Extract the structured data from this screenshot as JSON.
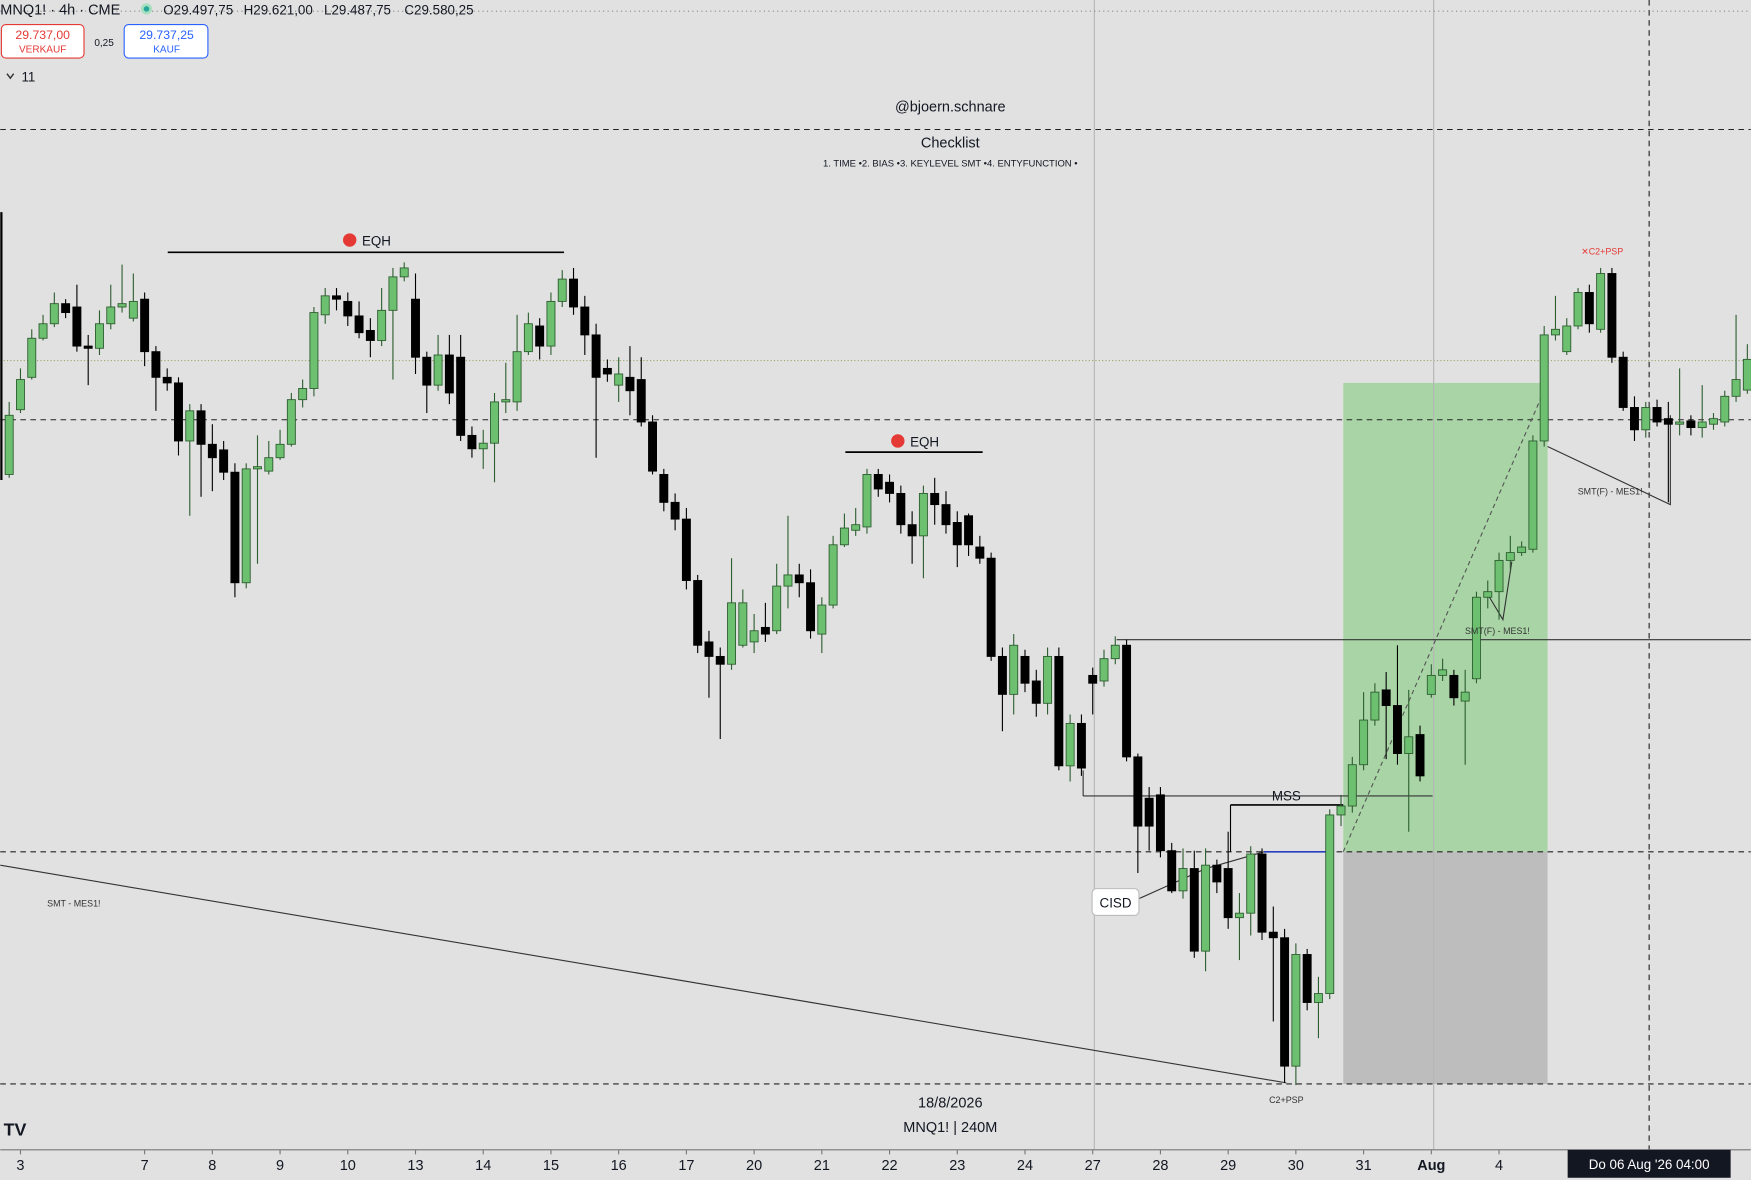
{
  "header": {
    "symbol": "MNQ1! · 4h · CME",
    "open": "O29.497,75",
    "high": "H29.621,00",
    "low": "L29.487,75",
    "close": "C29.580,25"
  },
  "order_panel": {
    "sell_price": "29.737,00",
    "sell_label": "VERKAUF",
    "spread": "0,25",
    "buy_price": "29.737,25",
    "buy_label": "KAUF"
  },
  "indicators_toggle": "11",
  "watermark": {
    "author": "@bjoern.schnare",
    "checklist_title": "Checklist",
    "checklist_items": "1. TIME •2. BIAS •3. KEYLEVEL SMT •4. ENTYFUNCTION •",
    "date": "18/8/2026",
    "symbol_interval": "MNQ1! | 240M"
  },
  "crosshair_label": "Do 06 Aug '26  04:00",
  "chart_data": {
    "type": "candlestick",
    "colors": {
      "up": "#6cc070",
      "down": "#000000"
    },
    "xlim": [
      -0.79,
      154.3
    ],
    "ylim": [
      27456,
      30546
    ],
    "xticks": [
      {
        "value": 1,
        "label": "3"
      },
      {
        "value": 12,
        "label": "7"
      },
      {
        "value": 18,
        "label": "8"
      },
      {
        "value": 24,
        "label": "9"
      },
      {
        "value": 30,
        "label": "10"
      },
      {
        "value": 36,
        "label": "13"
      },
      {
        "value": 42,
        "label": "14"
      },
      {
        "value": 48,
        "label": "15"
      },
      {
        "value": 54,
        "label": "16"
      },
      {
        "value": 60,
        "label": "17"
      },
      {
        "value": 66,
        "label": "20"
      },
      {
        "value": 72,
        "label": "21"
      },
      {
        "value": 78,
        "label": "22"
      },
      {
        "value": 84,
        "label": "23"
      },
      {
        "value": 90,
        "label": "24"
      },
      {
        "value": 96,
        "label": "27"
      },
      {
        "value": 102,
        "label": "28"
      },
      {
        "value": 108,
        "label": "29"
      },
      {
        "value": 114,
        "label": "30"
      },
      {
        "value": 120,
        "label": "31"
      },
      {
        "value": 126,
        "label": "Aug"
      },
      {
        "value": 132,
        "label": "4"
      }
    ],
    "levels": [
      30198,
      29418,
      28257,
      27633
    ],
    "last_price": 29577,
    "annotations": {
      "eqh_1": "EQH",
      "eqh_2": "EQH",
      "mss": "MSS",
      "cisd": "CISD",
      "smt": "SMT - MES1!",
      "smt_f_1": "SMT(F) - MES1!",
      "smt_f_2": "SMT(F) - MES1!",
      "c2_psp": "C2+PSP",
      "xc2_psp": "✕C2+PSP"
    },
    "candles": [
      [
        29271,
        29466,
        29262,
        29430
      ],
      [
        29445,
        29556,
        29436,
        29526
      ],
      [
        29532,
        29661,
        29526,
        29637
      ],
      [
        29637,
        29700,
        29631,
        29676
      ],
      [
        29676,
        29760,
        29667,
        29730
      ],
      [
        29730,
        29742,
        29691,
        29706
      ],
      [
        29721,
        29781,
        29601,
        29616
      ],
      [
        29616,
        29646,
        29511,
        29610
      ],
      [
        29610,
        29712,
        29592,
        29676
      ],
      [
        29676,
        29781,
        29661,
        29721
      ],
      [
        29721,
        29835,
        29706,
        29730
      ],
      [
        29691,
        29811,
        29682,
        29736
      ],
      [
        29742,
        29760,
        29562,
        29601
      ],
      [
        29601,
        29616,
        29442,
        29532
      ],
      [
        29532,
        29556,
        29496,
        29517
      ],
      [
        29517,
        29532,
        29322,
        29361
      ],
      [
        29361,
        29460,
        29160,
        29442
      ],
      [
        29442,
        29460,
        29211,
        29352
      ],
      [
        29352,
        29406,
        29226,
        29316
      ],
      [
        29337,
        29361,
        29256,
        29277
      ],
      [
        29277,
        29301,
        28941,
        28980
      ],
      [
        28980,
        29301,
        28965,
        29286
      ],
      [
        29286,
        29376,
        29031,
        29292
      ],
      [
        29280,
        29361,
        29271,
        29316
      ],
      [
        29316,
        29391,
        29310,
        29352
      ],
      [
        29352,
        29490,
        29346,
        29472
      ],
      [
        29472,
        29526,
        29451,
        29502
      ],
      [
        29502,
        29721,
        29481,
        29706
      ],
      [
        29700,
        29772,
        29676,
        29751
      ],
      [
        29751,
        29772,
        29712,
        29742
      ],
      [
        29736,
        29760,
        29670,
        29697
      ],
      [
        29697,
        29736,
        29637,
        29652
      ],
      [
        29658,
        29691,
        29586,
        29631
      ],
      [
        29631,
        29772,
        29616,
        29712
      ],
      [
        29712,
        29826,
        29526,
        29802
      ],
      [
        29802,
        29841,
        29790,
        29826
      ],
      [
        29742,
        29811,
        29541,
        29586
      ],
      [
        29586,
        29601,
        29436,
        29511
      ],
      [
        29511,
        29646,
        29496,
        29592
      ],
      [
        29592,
        29646,
        29460,
        29490
      ],
      [
        29586,
        29646,
        29361,
        29376
      ],
      [
        29376,
        29400,
        29316,
        29340
      ],
      [
        29340,
        29391,
        29286,
        29355
      ],
      [
        29355,
        29490,
        29250,
        29466
      ],
      [
        29466,
        29571,
        29436,
        29472
      ],
      [
        29466,
        29700,
        29442,
        29601
      ],
      [
        29601,
        29706,
        29592,
        29676
      ],
      [
        29670,
        29691,
        29580,
        29616
      ],
      [
        29616,
        29760,
        29592,
        29736
      ],
      [
        29736,
        29820,
        29721,
        29796
      ],
      [
        29796,
        29826,
        29700,
        29721
      ],
      [
        29721,
        29751,
        29592,
        29646
      ],
      [
        29646,
        29676,
        29316,
        29532
      ],
      [
        29556,
        29580,
        29520,
        29541
      ],
      [
        29511,
        29586,
        29466,
        29541
      ],
      [
        29532,
        29616,
        29430,
        29496
      ],
      [
        29526,
        29586,
        29400,
        29412
      ],
      [
        29412,
        29430,
        29271,
        29280
      ],
      [
        29271,
        29286,
        29172,
        29196
      ],
      [
        29196,
        29220,
        29121,
        29151
      ],
      [
        29151,
        29181,
        28962,
        28986
      ],
      [
        28986,
        29001,
        28791,
        28812
      ],
      [
        28821,
        28851,
        28671,
        28782
      ],
      [
        28782,
        28806,
        28560,
        28761
      ],
      [
        28761,
        29046,
        28746,
        28926
      ],
      [
        28812,
        28962,
        28806,
        28926
      ],
      [
        28821,
        28896,
        28791,
        28851
      ],
      [
        28860,
        28926,
        28821,
        28842
      ],
      [
        28851,
        29031,
        28842,
        28971
      ],
      [
        28971,
        29160,
        28911,
        29001
      ],
      [
        29001,
        29031,
        28941,
        28980
      ],
      [
        28980,
        29016,
        28830,
        28851
      ],
      [
        28842,
        28941,
        28791,
        28920
      ],
      [
        28920,
        29106,
        28911,
        29082
      ],
      [
        29082,
        29166,
        29076,
        29127
      ],
      [
        29121,
        29181,
        29106,
        29136
      ],
      [
        29130,
        29286,
        29112,
        29271
      ],
      [
        29271,
        29286,
        29211,
        29232
      ],
      [
        29250,
        29271,
        29196,
        29220
      ],
      [
        29220,
        29241,
        29112,
        29136
      ],
      [
        29136,
        29172,
        29031,
        29106
      ],
      [
        29106,
        29241,
        28992,
        29220
      ],
      [
        29220,
        29262,
        29136,
        29190
      ],
      [
        29190,
        29226,
        29112,
        29136
      ],
      [
        29142,
        29172,
        29022,
        29082
      ],
      [
        29160,
        29166,
        29052,
        29082
      ],
      [
        29076,
        29106,
        29031,
        29046
      ],
      [
        29046,
        29061,
        28770,
        28782
      ],
      [
        28782,
        28806,
        28581,
        28680
      ],
      [
        28680,
        28842,
        28626,
        28812
      ],
      [
        28782,
        28800,
        28686,
        28710
      ],
      [
        28716,
        28746,
        28620,
        28656
      ],
      [
        28656,
        28806,
        28626,
        28782
      ],
      [
        28782,
        28806,
        28476,
        28488
      ],
      [
        28488,
        28626,
        28446,
        28602
      ],
      [
        28602,
        28626,
        28461,
        28482
      ],
      [
        28731,
        28752,
        28626,
        28710
      ],
      [
        28716,
        28800,
        28701,
        28776
      ],
      [
        28776,
        28836,
        28761,
        28812
      ],
      [
        28812,
        28827,
        28500,
        28512
      ],
      [
        28512,
        28521,
        28200,
        28326
      ],
      [
        28401,
        28431,
        28260,
        28326
      ],
      [
        28410,
        28431,
        28242,
        28260
      ],
      [
        28260,
        28281,
        28146,
        28152
      ],
      [
        28152,
        28266,
        28131,
        28212
      ],
      [
        28212,
        28260,
        27972,
        27990
      ],
      [
        27990,
        28266,
        27936,
        28221
      ],
      [
        28221,
        28236,
        28146,
        28176
      ],
      [
        28212,
        28311,
        28050,
        28080
      ],
      [
        28080,
        28146,
        27966,
        28092
      ],
      [
        28092,
        28272,
        28032,
        28251
      ],
      [
        28251,
        28266,
        28020,
        28041
      ],
      [
        28041,
        28110,
        27801,
        28026
      ],
      [
        28026,
        28050,
        27636,
        27681
      ],
      [
        27681,
        28011,
        27630,
        27981
      ],
      [
        27981,
        27996,
        27831,
        27852
      ],
      [
        27852,
        27921,
        27756,
        27876
      ],
      [
        27876,
        28371,
        27861,
        28356
      ],
      [
        28356,
        28410,
        28326,
        28380
      ],
      [
        28380,
        28512,
        28362,
        28491
      ],
      [
        28491,
        28686,
        28476,
        28611
      ],
      [
        28611,
        28710,
        28596,
        28686
      ],
      [
        28692,
        28740,
        28506,
        28650
      ],
      [
        28650,
        28812,
        28491,
        28521
      ],
      [
        28521,
        28692,
        28311,
        28566
      ],
      [
        28572,
        28596,
        28446,
        28461
      ],
      [
        28680,
        28761,
        28671,
        28731
      ],
      [
        28731,
        28776,
        28716,
        28746
      ],
      [
        28731,
        28746,
        28650,
        28671
      ],
      [
        28662,
        28746,
        28491,
        28686
      ],
      [
        28722,
        28956,
        28710,
        28941
      ],
      [
        28941,
        28986,
        28911,
        28956
      ],
      [
        28956,
        29061,
        28881,
        29040
      ],
      [
        29040,
        29106,
        29016,
        29061
      ],
      [
        29061,
        29091,
        29052,
        29076
      ],
      [
        29070,
        29376,
        29061,
        29361
      ],
      [
        29361,
        29670,
        29346,
        29646
      ],
      [
        29646,
        29751,
        29631,
        29661
      ],
      [
        29601,
        29691,
        29592,
        29670
      ],
      [
        29670,
        29772,
        29661,
        29760
      ],
      [
        29760,
        29781,
        29652,
        29676
      ],
      [
        29661,
        29826,
        29652,
        29811
      ],
      [
        29811,
        29826,
        29571,
        29586
      ],
      [
        29586,
        29601,
        29442,
        29451
      ],
      [
        29451,
        29481,
        29361,
        29391
      ],
      [
        29391,
        29466,
        29370,
        29451
      ],
      [
        29451,
        29472,
        29400,
        29412
      ],
      [
        29421,
        29466,
        29196,
        29406
      ],
      [
        29406,
        29556,
        29376,
        29412
      ],
      [
        29415,
        29430,
        29376,
        29397
      ],
      [
        29397,
        29511,
        29370,
        29412
      ],
      [
        29406,
        29436,
        29391,
        29421
      ],
      [
        29412,
        29496,
        29400,
        29481
      ],
      [
        29481,
        29700,
        29466,
        29526
      ],
      [
        29497.75,
        29621,
        29487.75,
        29580.25
      ]
    ]
  }
}
